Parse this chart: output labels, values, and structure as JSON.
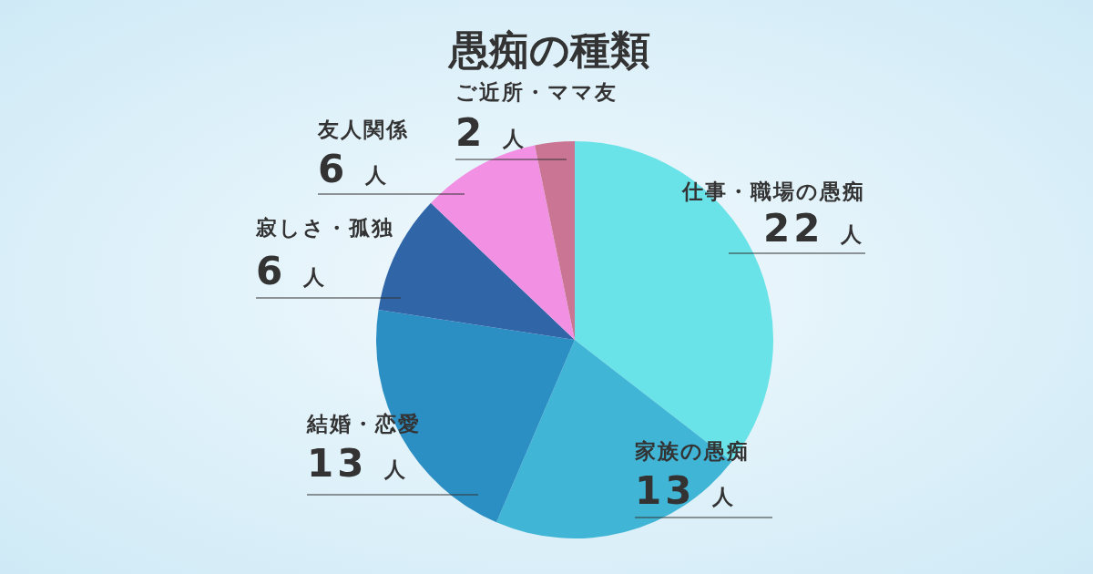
{
  "chart_data": {
    "type": "pie",
    "title": "愚痴の種類",
    "categories": [
      "仕事・職場の愚痴",
      "家族の愚痴",
      "結婚・恋愛",
      "寂しさ・孤独",
      "友人関係",
      "ご近所・ママ友"
    ],
    "values": [
      22,
      13,
      13,
      6,
      6,
      2
    ],
    "value_labels": [
      "22 人",
      "13 人",
      "13 人",
      "6 人",
      "6 人",
      "2 人"
    ],
    "colors": [
      "#6ae3e8",
      "#40b5d6",
      "#2c8fc4",
      "#3065a8",
      "#f291e3",
      "#c97593"
    ],
    "legend": false
  }
}
